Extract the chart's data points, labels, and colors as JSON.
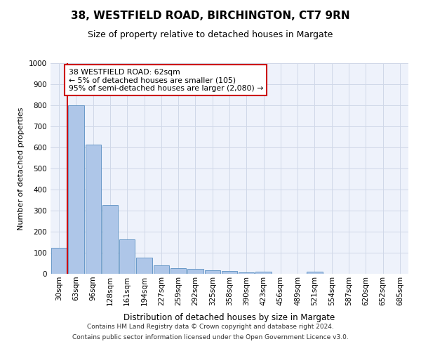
{
  "title_line1": "38, WESTFIELD ROAD, BIRCHINGTON, CT7 9RN",
  "title_line2": "Size of property relative to detached houses in Margate",
  "xlabel": "Distribution of detached houses by size in Margate",
  "ylabel": "Number of detached properties",
  "categories": [
    "30sqm",
    "63sqm",
    "96sqm",
    "128sqm",
    "161sqm",
    "194sqm",
    "227sqm",
    "259sqm",
    "292sqm",
    "325sqm",
    "358sqm",
    "390sqm",
    "423sqm",
    "456sqm",
    "489sqm",
    "521sqm",
    "554sqm",
    "587sqm",
    "620sqm",
    "652sqm",
    "685sqm"
  ],
  "values": [
    125,
    800,
    615,
    328,
    162,
    78,
    40,
    27,
    22,
    17,
    15,
    7,
    10,
    0,
    0,
    10,
    0,
    0,
    0,
    0,
    0
  ],
  "bar_color": "#aec6e8",
  "bar_edge_color": "#5a8fc2",
  "grid_color": "#d0d8e8",
  "annotation_text_line1": "38 WESTFIELD ROAD: 62sqm",
  "annotation_text_line2": "← 5% of detached houses are smaller (105)",
  "annotation_text_line3": "95% of semi-detached houses are larger (2,080) →",
  "annotation_box_color": "#cc0000",
  "vline_color": "#cc0000",
  "ylim": [
    0,
    1000
  ],
  "yticks": [
    0,
    100,
    200,
    300,
    400,
    500,
    600,
    700,
    800,
    900,
    1000
  ],
  "footnote1": "Contains HM Land Registry data © Crown copyright and database right 2024.",
  "footnote2": "Contains public sector information licensed under the Open Government Licence v3.0.",
  "bg_color": "#eef2fb",
  "title_fontsize": 11,
  "subtitle_fontsize": 9,
  "ylabel_fontsize": 8,
  "xlabel_fontsize": 8.5,
  "tick_fontsize": 7.5,
  "footnote_fontsize": 6.5
}
